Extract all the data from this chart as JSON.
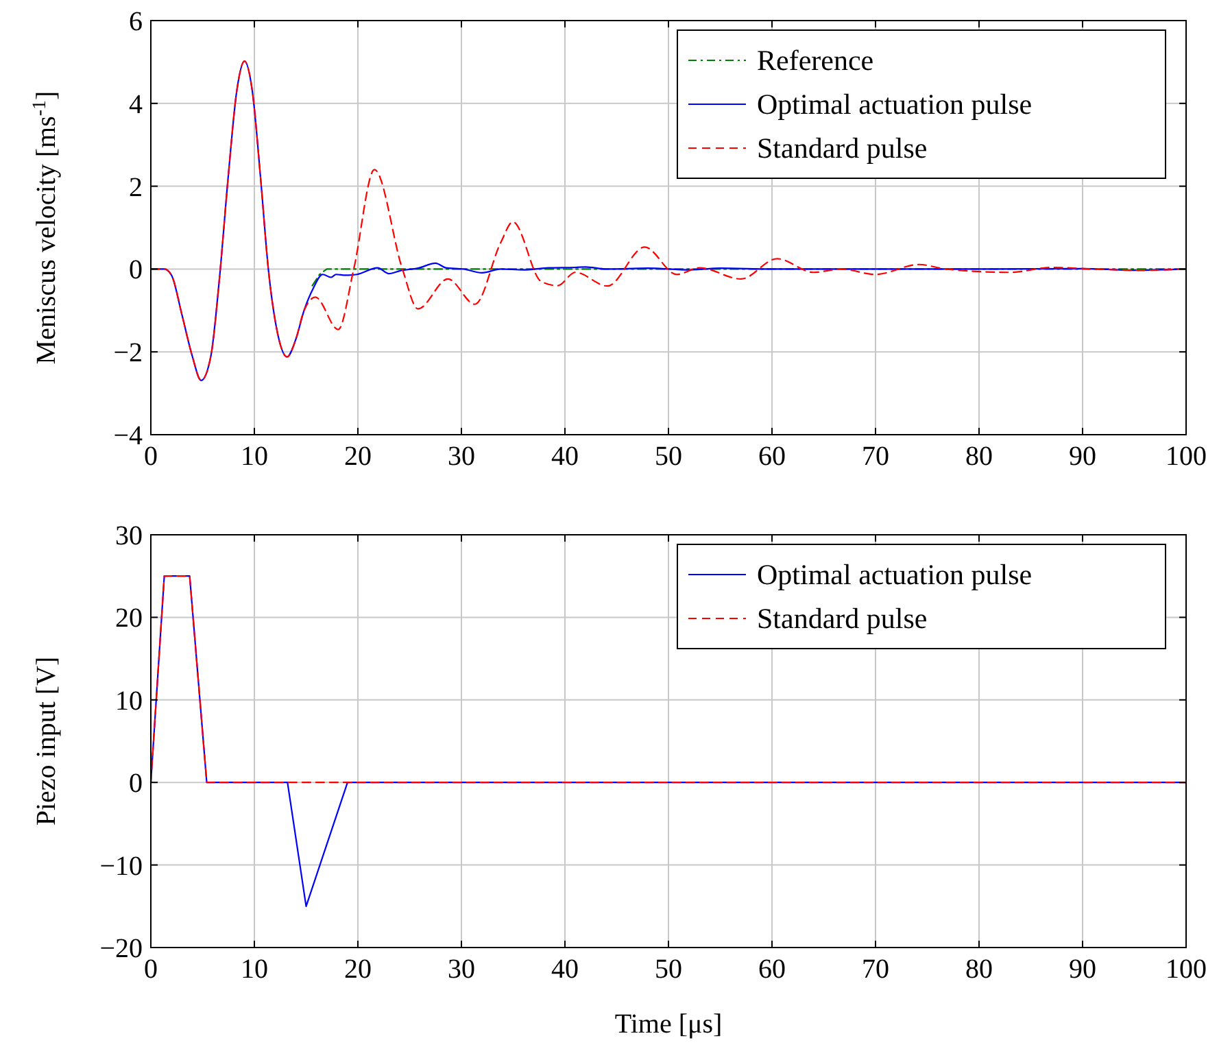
{
  "chart_data": [
    {
      "type": "line",
      "ylabel": "Meniscus velocity [ms$^{-1}$]",
      "xlim": [
        0,
        100
      ],
      "ylim": [
        -4,
        6
      ],
      "xticks": [
        0,
        10,
        20,
        30,
        40,
        50,
        60,
        70,
        80,
        90,
        100
      ],
      "yticks": [
        {
          "value": -4,
          "label": "−4"
        },
        {
          "value": -2,
          "label": "−2"
        },
        0,
        2,
        4,
        6
      ],
      "grid": true,
      "legend": "top right",
      "series": [
        {
          "name": "Reference",
          "color": "#008000",
          "line_style": "dashdot",
          "x": [
            15.6,
            16.3,
            17,
            20,
            30,
            40,
            50,
            60,
            70,
            100
          ],
          "values": [
            -0.4,
            -0.13,
            0,
            0,
            0,
            0,
            0,
            0,
            0,
            0
          ]
        },
        {
          "name": "Optimal actuation pulse",
          "color": "#0000ff",
          "line_style": "solid",
          "x": [
            0,
            1.3,
            2,
            3,
            4,
            4.86,
            5.8,
            6.6,
            7.5,
            8.3,
            9.05,
            9.8,
            10.6,
            11.35,
            12.2,
            13.16,
            14,
            14.8,
            15.7,
            16.6,
            17.4,
            17.9,
            18.8,
            19.9,
            21.9,
            23,
            24.1,
            25.8,
            27.5,
            28.5,
            30.2,
            32,
            33.8,
            36,
            38.4,
            41,
            42,
            44,
            48,
            52,
            55,
            60,
            70,
            80,
            90,
            95,
            100
          ],
          "values": [
            0,
            0,
            -0.15,
            -1.1,
            -2.1,
            -2.69,
            -2.1,
            -0.3,
            2.3,
            4.3,
            5.02,
            4.3,
            2.2,
            0,
            -1.5,
            -2.12,
            -1.7,
            -1.0,
            -0.46,
            -0.13,
            -0.2,
            -0.13,
            -0.15,
            -0.13,
            0.03,
            -0.11,
            -0.04,
            0.02,
            0.14,
            0.03,
            0,
            -0.09,
            0,
            -0.02,
            0.03,
            0.04,
            0.05,
            0,
            0.02,
            -0.02,
            0.02,
            0,
            0,
            0,
            0.01,
            -0.03,
            0
          ]
        },
        {
          "name": "Standard pulse",
          "color": "#ff0000",
          "line_style": "dashed",
          "x": [
            0,
            1.3,
            2,
            3,
            4,
            4.86,
            5.8,
            6.6,
            7.5,
            8.3,
            9.05,
            9.8,
            10.6,
            11.35,
            12.2,
            13.16,
            14,
            14.8,
            15.9,
            18.1,
            19.6,
            21.6,
            24.3,
            25.8,
            28.7,
            31.3,
            33.8,
            34.97,
            37.7,
            39.3,
            41,
            44.1,
            47.7,
            50.8,
            53,
            57,
            60.5,
            64,
            66.7,
            70,
            74.2,
            76.8,
            83,
            87,
            91,
            95.4,
            100
          ],
          "values": [
            0,
            0,
            -0.15,
            -1.1,
            -2.1,
            -2.69,
            -2.1,
            -0.3,
            2.3,
            4.3,
            5.02,
            4.3,
            2.2,
            0,
            -1.5,
            -2.12,
            -1.7,
            -1.0,
            -0.68,
            -1.46,
            0,
            2.4,
            0,
            -0.96,
            -0.24,
            -0.85,
            0.64,
            1.14,
            -0.3,
            -0.4,
            -0.08,
            -0.41,
            0.53,
            -0.13,
            0.03,
            -0.24,
            0.25,
            -0.08,
            0,
            -0.13,
            0.11,
            0,
            -0.08,
            0.04,
            0,
            -0.03,
            0
          ]
        }
      ]
    },
    {
      "type": "line",
      "xlabel": "Time [μs]",
      "ylabel": "Piezo input [V]",
      "xlim": [
        0,
        100
      ],
      "ylim": [
        -20,
        30
      ],
      "xticks": [
        0,
        10,
        20,
        30,
        40,
        50,
        60,
        70,
        80,
        90,
        100
      ],
      "yticks": [
        {
          "value": -20,
          "label": "−20"
        },
        {
          "value": -10,
          "label": "−10"
        },
        0,
        10,
        20,
        30
      ],
      "grid": true,
      "legend": "top right",
      "series": [
        {
          "name": "Optimal actuation pulse",
          "color": "#0000ff",
          "line_style": "solid",
          "x": [
            0,
            1.3,
            3.75,
            5.4,
            13.2,
            15,
            19,
            100
          ],
          "values": [
            0,
            25,
            25,
            0,
            0,
            -15,
            0,
            0
          ]
        },
        {
          "name": "Standard pulse",
          "color": "#ff0000",
          "line_style": "dashed",
          "x": [
            0,
            1.3,
            3.75,
            5.4,
            100
          ],
          "values": [
            0,
            25,
            25,
            0,
            0
          ]
        }
      ]
    }
  ]
}
